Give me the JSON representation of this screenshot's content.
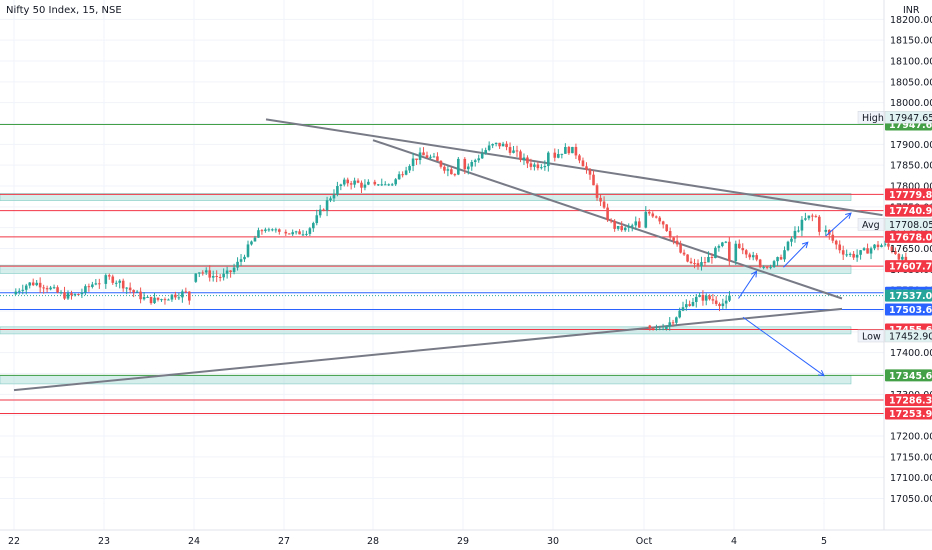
{
  "chart_data": {
    "type": "candlestick",
    "title": "Nifty 50 Index, 15, NSE",
    "currency": "INR",
    "ylim": [
      17020,
      18220
    ],
    "y_ticks": [
      18200,
      18150,
      18100,
      18050,
      18000,
      17950,
      17900,
      17850,
      17800,
      17750,
      17700,
      17650,
      17600,
      17550,
      17500,
      17450,
      17400,
      17350,
      17300,
      17250,
      17200,
      17150,
      17100,
      17050
    ],
    "x_labels": [
      "22",
      "23",
      "24",
      "27",
      "28",
      "29",
      "30",
      "Oct",
      "4",
      "5"
    ],
    "sessions": [
      {
        "o": 17540,
        "h": 17600,
        "l": 17505,
        "c": 17565
      },
      {
        "o": 17565,
        "h": 17590,
        "l": 17515,
        "c": 17525
      },
      {
        "o": 17570,
        "h": 17700,
        "l": 17565,
        "c": 17690
      },
      {
        "o": 17690,
        "h": 17820,
        "l": 17680,
        "c": 17810
      },
      {
        "o": 17810,
        "h": 17940,
        "l": 17800,
        "c": 17865
      },
      {
        "o": 17865,
        "h": 17947.65,
        "l": 17820,
        "c": 17880
      },
      {
        "o": 17880,
        "h": 17912,
        "l": 17690,
        "c": 17700
      },
      {
        "o": 17700,
        "h": 17780,
        "l": 17585,
        "c": 17620
      },
      {
        "o": 17620,
        "h": 17795,
        "l": 17600,
        "c": 17690
      },
      {
        "o": 17690,
        "h": 17720,
        "l": 17590,
        "c": 17605
      },
      {
        "o": 17465,
        "h": 17550,
        "l": 17452.9,
        "c": 17537
      }
    ],
    "price_levels": [
      {
        "value": 17779.8,
        "color": "#f23645"
      },
      {
        "value": 17740.95,
        "color": "#f23645"
      },
      {
        "value": 17678.05,
        "color": "#f23645"
      },
      {
        "value": 17607.75,
        "color": "#f23645"
      },
      {
        "value": 17503.6,
        "color": "#2962ff"
      },
      {
        "value": 17455.6,
        "color": "#f23645"
      },
      {
        "value": 17286.3,
        "color": "#f23645"
      },
      {
        "value": 17253.9,
        "color": "#f23645"
      }
    ],
    "green_levels": [
      17947.65,
      17345.65
    ],
    "zones": [
      [
        17765,
        17782
      ],
      [
        17590,
        17610
      ],
      [
        17445,
        17462
      ],
      [
        17325,
        17345
      ]
    ],
    "session_high": {
      "label": "High",
      "value": "17947.65"
    },
    "session_avg": {
      "label": "Avg",
      "value": "17708.05"
    },
    "session_low": {
      "label": "Low",
      "value": "17452.90"
    },
    "last_price": "17543.70",
    "current_price": "17537.05",
    "trendlines": [
      {
        "x1": 0.0,
        "y1": 17310,
        "x2": 9.2,
        "y2": 17505
      },
      {
        "x1": 2.8,
        "y1": 17960,
        "x2": 9.65,
        "y2": 17730
      },
      {
        "x1": 4.0,
        "y1": 17910,
        "x2": 9.2,
        "y2": 17530
      }
    ],
    "arrows": [
      {
        "x1": 8.05,
        "y1": 17530,
        "x2": 8.25,
        "y2": 17595
      },
      {
        "x1": 8.55,
        "y1": 17605,
        "x2": 8.82,
        "y2": 17665
      },
      {
        "x1": 9.02,
        "y1": 17680,
        "x2": 9.3,
        "y2": 17735
      },
      {
        "x1": 8.1,
        "y1": 17485,
        "x2": 9.0,
        "y2": 17345
      }
    ]
  },
  "colors": {
    "up": "#26a69a",
    "down": "#ef5350",
    "zone": "#b2dfdb",
    "green": "#43a047",
    "blue": "#2962ff"
  }
}
